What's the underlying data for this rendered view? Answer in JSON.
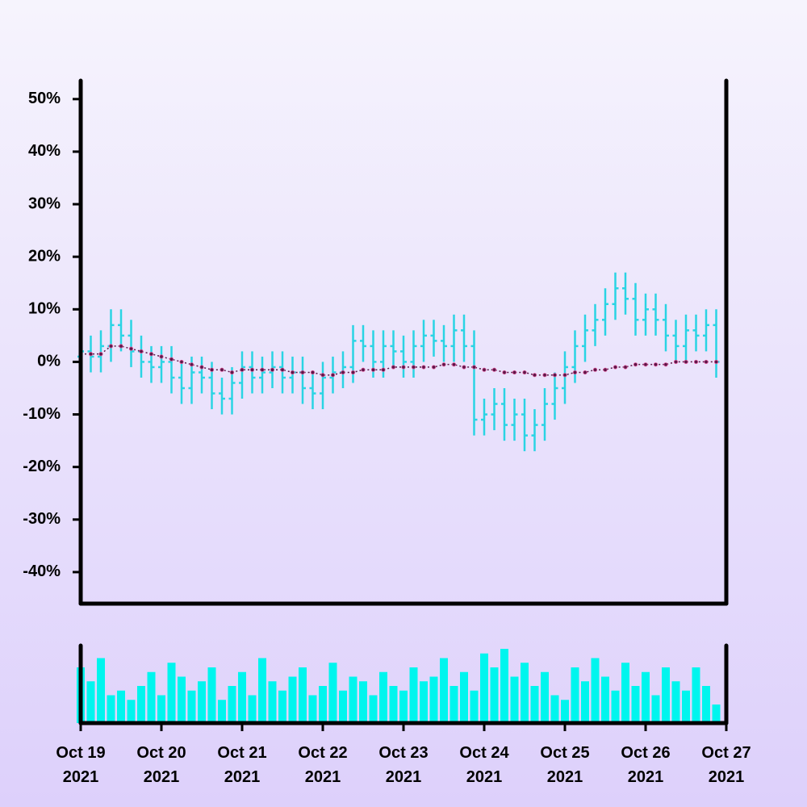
{
  "chart_data": [
    {
      "type": "ohlc",
      "color": "#2ad4e4",
      "xlim": [
        0,
        8
      ],
      "ylim": [
        -46,
        53.5
      ],
      "yticks": [
        {
          "value": -40,
          "label": "-40%"
        },
        {
          "value": -30,
          "label": "-30%"
        },
        {
          "value": -20,
          "label": "-20%"
        },
        {
          "value": -10,
          "label": "-10%"
        },
        {
          "value": 0,
          "label": "0%"
        },
        {
          "value": 10,
          "label": "10%"
        },
        {
          "value": 20,
          "label": "20%"
        },
        {
          "value": 30,
          "label": "30%"
        },
        {
          "value": 40,
          "label": "40%"
        },
        {
          "value": 50,
          "label": "50%"
        }
      ],
      "x": [
        0,
        0.125,
        0.25,
        0.375,
        0.5,
        0.625,
        0.75,
        0.875,
        1,
        1.125,
        1.25,
        1.375,
        1.5,
        1.625,
        1.75,
        1.875,
        2,
        2.125,
        2.25,
        2.375,
        2.5,
        2.625,
        2.75,
        2.875,
        3,
        3.125,
        3.25,
        3.375,
        3.5,
        3.625,
        3.75,
        3.875,
        4,
        4.125,
        4.25,
        4.375,
        4.5,
        4.625,
        4.75,
        4.875,
        5,
        5.125,
        5.25,
        5.375,
        5.5,
        5.625,
        5.75,
        5.875,
        6,
        6.125,
        6.25,
        6.375,
        6.5,
        6.625,
        6.75,
        6.875,
        7,
        7.125,
        7.25,
        7.375,
        7.5,
        7.625,
        7.75,
        7.875
      ],
      "open": [
        1,
        2,
        1,
        3,
        7,
        5,
        2,
        0,
        -1,
        0,
        -3,
        -5,
        -2,
        -3,
        -6,
        -7,
        -4,
        -1,
        -3,
        -2,
        -1,
        -3,
        -2,
        -5,
        -6,
        -3,
        -2,
        -1,
        4,
        3,
        0,
        3,
        2,
        0,
        3,
        5,
        4,
        3,
        6,
        3,
        -11,
        -10,
        -8,
        -12,
        -10,
        -14,
        -12,
        -8,
        -5,
        -1,
        3,
        6,
        8,
        11,
        14,
        12,
        8,
        10,
        8,
        5,
        3,
        6,
        5,
        7
      ],
      "high": [
        5,
        5,
        6,
        10,
        10,
        8,
        5,
        3,
        3,
        3,
        0,
        1,
        1,
        0,
        -3,
        -1,
        2,
        2,
        1,
        2,
        2,
        1,
        1,
        -2,
        0,
        1,
        2,
        7,
        7,
        6,
        6,
        6,
        5,
        6,
        8,
        8,
        7,
        9,
        9,
        6,
        -7,
        -5,
        -5,
        -7,
        -7,
        -9,
        -5,
        -2,
        2,
        6,
        9,
        11,
        14,
        17,
        17,
        15,
        13,
        13,
        11,
        8,
        9,
        9,
        10,
        10
      ],
      "low": [
        -2,
        -2,
        -2,
        0,
        2,
        -1,
        -3,
        -4,
        -4,
        -6,
        -8,
        -8,
        -6,
        -9,
        -10,
        -10,
        -7,
        -6,
        -6,
        -5,
        -6,
        -6,
        -8,
        -9,
        -9,
        -6,
        -5,
        -4,
        0,
        -3,
        -3,
        -1,
        -3,
        -3,
        0,
        1,
        0,
        0,
        0,
        -14,
        -14,
        -13,
        -15,
        -15,
        -17,
        -17,
        -15,
        -11,
        -8,
        -4,
        0,
        3,
        5,
        8,
        9,
        5,
        5,
        5,
        2,
        0,
        0,
        2,
        2,
        -3
      ],
      "close": [
        2,
        1,
        3,
        7,
        5,
        2,
        0,
        -1,
        0,
        -3,
        -5,
        -2,
        -3,
        -6,
        -7,
        -4,
        -1,
        -3,
        -2,
        -1,
        -3,
        -2,
        -5,
        -6,
        -3,
        -2,
        -1,
        4,
        3,
        0,
        3,
        2,
        0,
        3,
        5,
        4,
        3,
        6,
        3,
        -11,
        -10,
        -8,
        -12,
        -10,
        -14,
        -12,
        -8,
        -5,
        -1,
        3,
        6,
        8,
        11,
        14,
        12,
        8,
        10,
        8,
        5,
        3,
        6,
        5,
        7,
        0
      ],
      "ma": {
        "color": "#5b1848",
        "edge": "#e0559a",
        "values": [
          1.5,
          1.5,
          1.5,
          3,
          3,
          2.5,
          2,
          1.5,
          1,
          0.5,
          0,
          -0.5,
          -1,
          -1.5,
          -1.5,
          -2,
          -1.5,
          -1.5,
          -1.5,
          -1.5,
          -1.5,
          -2,
          -2,
          -2,
          -2.5,
          -2.5,
          -2,
          -2,
          -1.5,
          -1.5,
          -1.5,
          -1,
          -1,
          -1,
          -1,
          -1,
          -0.5,
          -0.5,
          -1,
          -1,
          -1.5,
          -1.5,
          -2,
          -2,
          -2,
          -2.5,
          -2.5,
          -2.5,
          -2.5,
          -2,
          -2,
          -1.5,
          -1.5,
          -1,
          -1,
          -0.5,
          -0.5,
          -0.5,
          -0.5,
          0,
          0,
          0,
          0,
          0
        ]
      }
    },
    {
      "type": "bar",
      "color": "#00f5ee",
      "xlim": [
        0,
        8
      ],
      "x": [
        0,
        0.125,
        0.25,
        0.375,
        0.5,
        0.625,
        0.75,
        0.875,
        1,
        1.125,
        1.25,
        1.375,
        1.5,
        1.625,
        1.75,
        1.875,
        2,
        2.125,
        2.25,
        2.375,
        2.5,
        2.625,
        2.75,
        2.875,
        3,
        3.125,
        3.25,
        3.375,
        3.5,
        3.625,
        3.75,
        3.875,
        4,
        4.125,
        4.25,
        4.375,
        4.5,
        4.625,
        4.75,
        4.875,
        5,
        5.125,
        5.25,
        5.375,
        5.5,
        5.625,
        5.75,
        5.875,
        6,
        6.125,
        6.25,
        6.375,
        6.5,
        6.625,
        6.75,
        6.875,
        7,
        7.125,
        7.25,
        7.375,
        7.5,
        7.625,
        7.75,
        7.875
      ],
      "values": [
        60,
        45,
        70,
        30,
        35,
        25,
        40,
        55,
        30,
        65,
        50,
        35,
        45,
        60,
        25,
        40,
        55,
        30,
        70,
        45,
        35,
        50,
        60,
        30,
        40,
        65,
        35,
        50,
        45,
        30,
        55,
        40,
        35,
        60,
        45,
        50,
        70,
        40,
        55,
        35,
        75,
        60,
        80,
        50,
        65,
        40,
        55,
        30,
        25,
        60,
        45,
        70,
        50,
        35,
        65,
        40,
        55,
        30,
        60,
        45,
        35,
        60,
        40,
        20
      ],
      "xticks": [
        {
          "value": 0,
          "label": "Oct 19 2021"
        },
        {
          "value": 1,
          "label": "Oct 20 2021"
        },
        {
          "value": 2,
          "label": "Oct 21 2021"
        },
        {
          "value": 3,
          "label": "Oct 22 2021"
        },
        {
          "value": 4,
          "label": "Oct 23 2021"
        },
        {
          "value": 5,
          "label": "Oct 24 2021"
        },
        {
          "value": 6,
          "label": "Oct 25 2021"
        },
        {
          "value": 7,
          "label": "Oct 26 2021"
        },
        {
          "value": 8,
          "label": "Oct 27 2021"
        }
      ]
    }
  ]
}
